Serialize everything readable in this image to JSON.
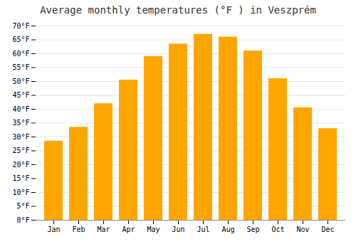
{
  "chart_data": {
    "type": "bar",
    "title": "Average monthly temperatures (°F ) in Veszprém",
    "categories": [
      "Jan",
      "Feb",
      "Mar",
      "Apr",
      "May",
      "Jun",
      "Jul",
      "Aug",
      "Sep",
      "Oct",
      "Nov",
      "Dec"
    ],
    "values": [
      28.5,
      33.5,
      42,
      50.5,
      59,
      63.5,
      67,
      66,
      61,
      51,
      40.5,
      33
    ],
    "color": "#FFA500",
    "ylim": [
      0,
      70
    ],
    "yticks": [
      {
        "value": 0,
        "label": "0°F"
      },
      {
        "value": 5,
        "label": "5°F"
      },
      {
        "value": 10,
        "label": "10°F"
      },
      {
        "value": 15,
        "label": "15°F"
      },
      {
        "value": 20,
        "label": "20°F"
      },
      {
        "value": 25,
        "label": "25°F"
      },
      {
        "value": 30,
        "label": "30°F"
      },
      {
        "value": 35,
        "label": "35°F"
      },
      {
        "value": 40,
        "label": "40°F"
      },
      {
        "value": 45,
        "label": "45°F"
      },
      {
        "value": 50,
        "label": "50°F"
      },
      {
        "value": 55,
        "label": "55°F"
      },
      {
        "value": 60,
        "label": "60°F"
      },
      {
        "value": 65,
        "label": "65°F"
      },
      {
        "value": 70,
        "label": "70°F"
      }
    ],
    "grid": true
  }
}
